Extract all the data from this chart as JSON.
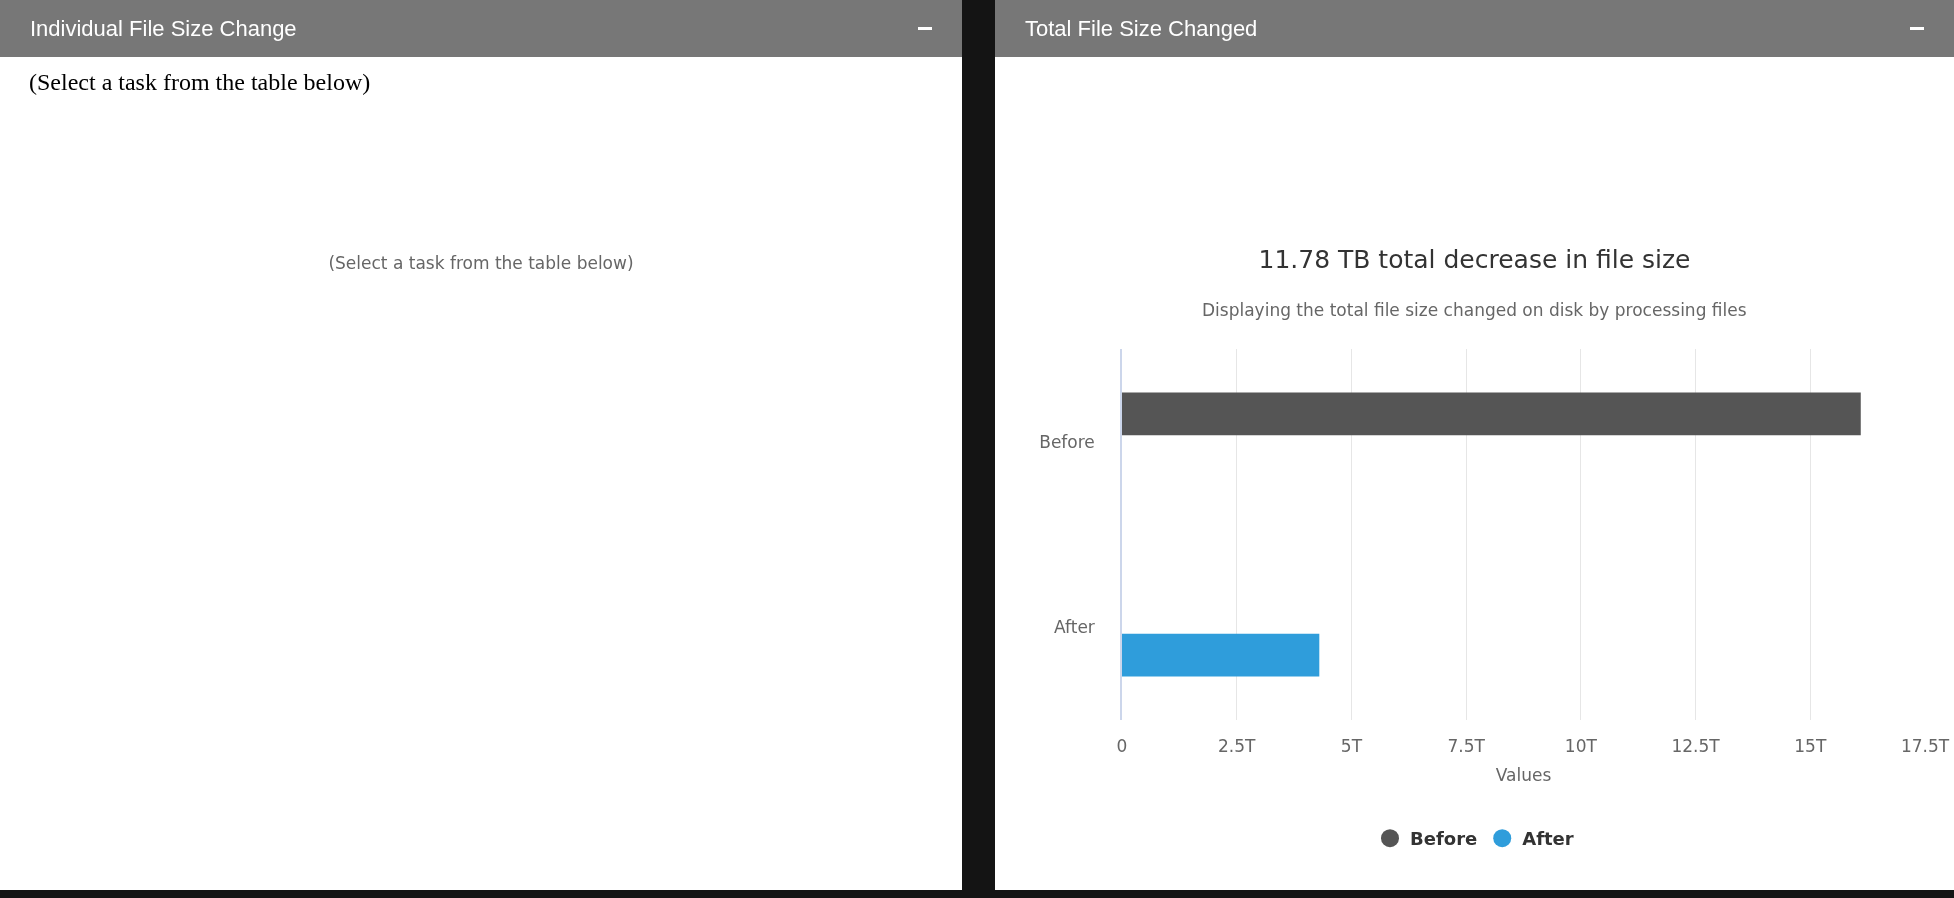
{
  "chart_data": [
    {
      "type": "other",
      "annotations": [
        "Individual File Size Change",
        "(Select a task from the table below)",
        "(Select a task from the table below)"
      ]
    },
    {
      "type": "bar",
      "title": "11.78 TB total decrease in file size",
      "subtitle": "Displaying the total file size changed on disk by processing files",
      "annotations": [
        "Total File Size Changed"
      ],
      "xlabel": "Values",
      "categories": [
        "Before",
        "After"
      ],
      "orientation": "horizontal",
      "series": [
        {
          "name": "Before",
          "color": "#555555",
          "values": [
            16.1,
            null
          ]
        },
        {
          "name": "After",
          "color": "#2f9ddb",
          "values": [
            null,
            4.3
          ]
        }
      ],
      "xlim": [
        0,
        17.5
      ],
      "xticks": [
        0,
        {
          "value": 2.5,
          "label": "2.5T"
        },
        {
          "value": 5,
          "label": "5T"
        },
        {
          "value": 7.5,
          "label": "7.5T"
        },
        {
          "value": 10,
          "label": "10T"
        },
        {
          "value": 12.5,
          "label": "12.5T"
        },
        {
          "value": 15,
          "label": "15T"
        },
        {
          "value": 17.5,
          "label": "17.5T"
        }
      ],
      "grid": "x",
      "legend": "bottom",
      "marker": "circle"
    }
  ]
}
